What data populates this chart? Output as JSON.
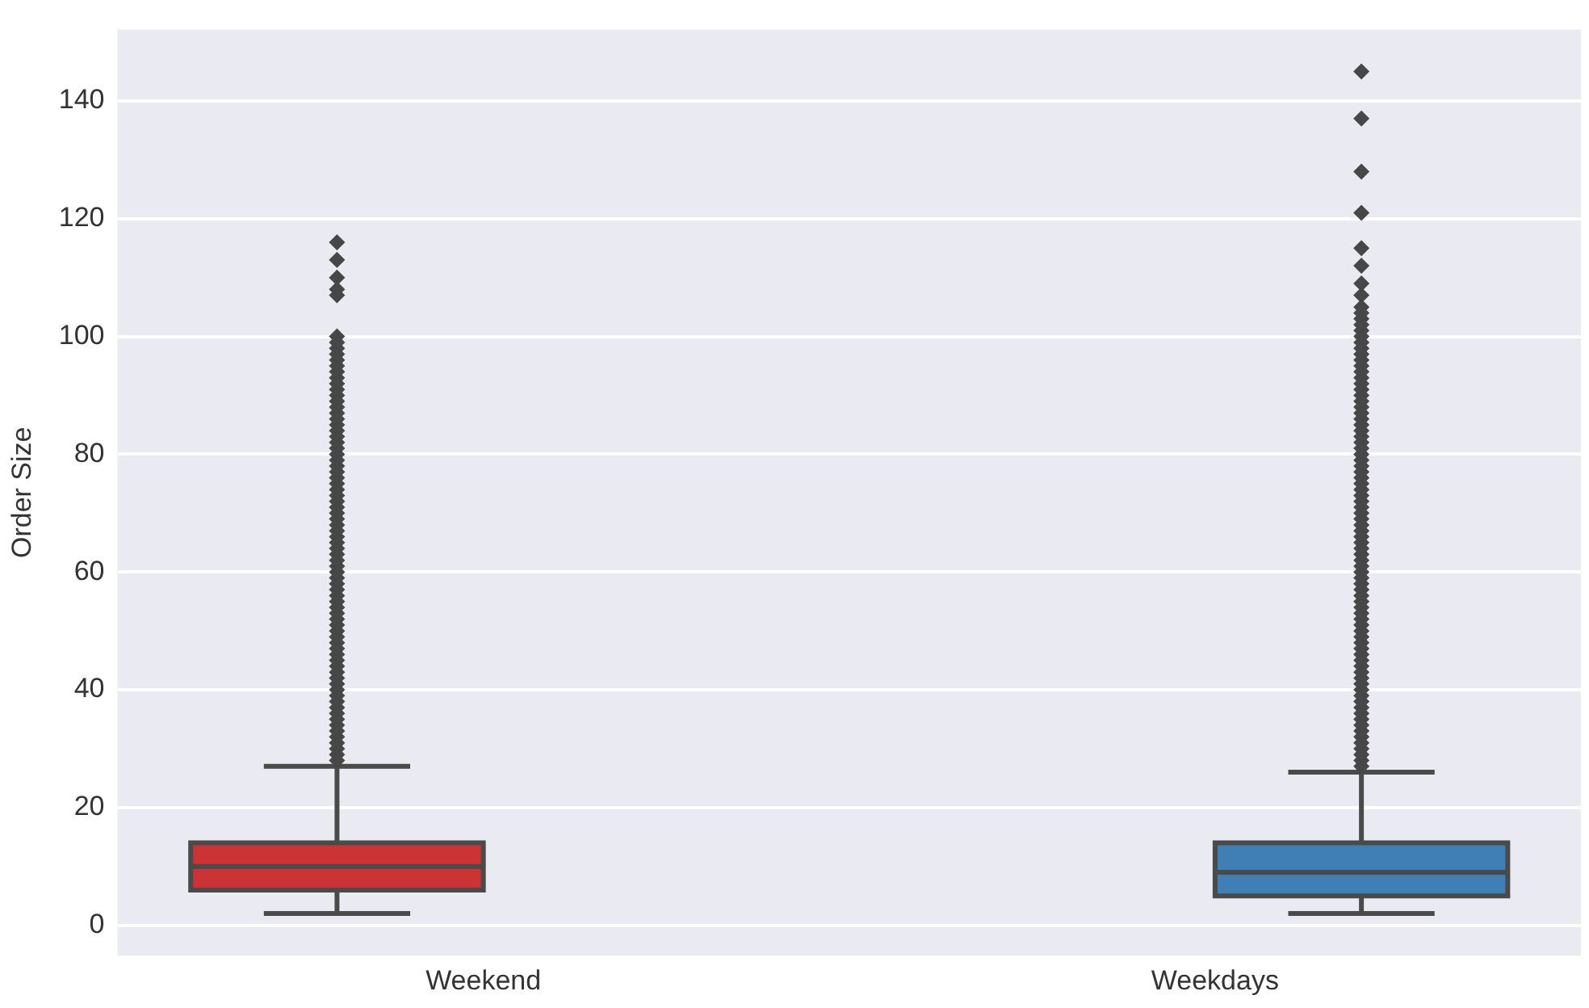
{
  "chart_data": {
    "type": "box",
    "ylabel": "Order Size",
    "categories": [
      "Weekend",
      "Weekdays"
    ],
    "ylim": [
      -5.15,
      152.15
    ],
    "yticks": [
      0,
      20,
      40,
      60,
      80,
      100,
      120,
      140
    ],
    "grid": "y",
    "legend": false,
    "marker": "diamond",
    "series": [
      {
        "color": "#cb3335",
        "boxes": [
          {
            "low": 2,
            "q1": 6,
            "median": 10,
            "q3": 14,
            "high": 27,
            "outliers": [
              28,
              29,
              30,
              31,
              32,
              33,
              34,
              35,
              36,
              37,
              38,
              39,
              40,
              41,
              42,
              43,
              44,
              45,
              46,
              47,
              48,
              49,
              50,
              51,
              52,
              53,
              54,
              55,
              56,
              57,
              58,
              59,
              60,
              61,
              62,
              63,
              64,
              65,
              66,
              67,
              68,
              69,
              70,
              71,
              72,
              73,
              74,
              75,
              76,
              77,
              78,
              79,
              80,
              81,
              82,
              83,
              84,
              85,
              86,
              87,
              88,
              89,
              90,
              91,
              92,
              93,
              94,
              95,
              96,
              97,
              98,
              99,
              100,
              107,
              108,
              110,
              113,
              116
            ]
          },
          null
        ]
      },
      {
        "color": "#3f7fb5",
        "boxes": [
          null,
          {
            "low": 2,
            "q1": 5,
            "median": 9,
            "q3": 14,
            "high": 26,
            "outliers": [
              27,
              28,
              29,
              30,
              31,
              32,
              33,
              34,
              35,
              36,
              37,
              38,
              39,
              40,
              41,
              42,
              43,
              44,
              45,
              46,
              47,
              48,
              49,
              50,
              51,
              52,
              53,
              54,
              55,
              56,
              57,
              58,
              59,
              60,
              61,
              62,
              63,
              64,
              65,
              66,
              67,
              68,
              69,
              70,
              71,
              72,
              73,
              74,
              75,
              76,
              77,
              78,
              79,
              80,
              81,
              82,
              83,
              84,
              85,
              86,
              87,
              88,
              89,
              90,
              91,
              92,
              93,
              94,
              95,
              96,
              97,
              98,
              99,
              100,
              101,
              102,
              103,
              104,
              105,
              107,
              109,
              112,
              115,
              121,
              128,
              137,
              145
            ]
          }
        ]
      }
    ]
  }
}
